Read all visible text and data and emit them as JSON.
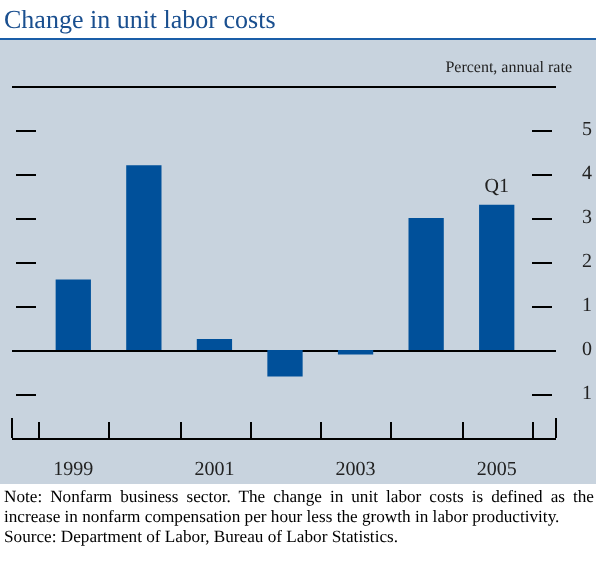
{
  "chart_data": {
    "type": "bar",
    "title": "Change in unit labor costs",
    "ylabel": "Percent, annual rate",
    "categories": [
      "1999",
      null,
      "2001",
      null,
      "2003",
      null,
      "2005"
    ],
    "values": [
      1.6,
      4.2,
      0.25,
      -0.6,
      -0.1,
      3.0,
      3.3
    ],
    "color": "#00509a",
    "ylim": [
      -2,
      6
    ],
    "yticks": [
      {
        "value": -1,
        "label": "1"
      },
      0,
      1,
      2,
      3,
      4,
      5
    ],
    "annotations": [
      {
        "text": "Q1",
        "x": "2005",
        "y": 3.3
      },
      "Note: Nonfarm business sector. The change in unit labor costs is defined as the increase in nonfarm compensation per hour less the growth in labor productivity.",
      "Source: Department of Labor, Bureau of Labor Statistics."
    ]
  }
}
